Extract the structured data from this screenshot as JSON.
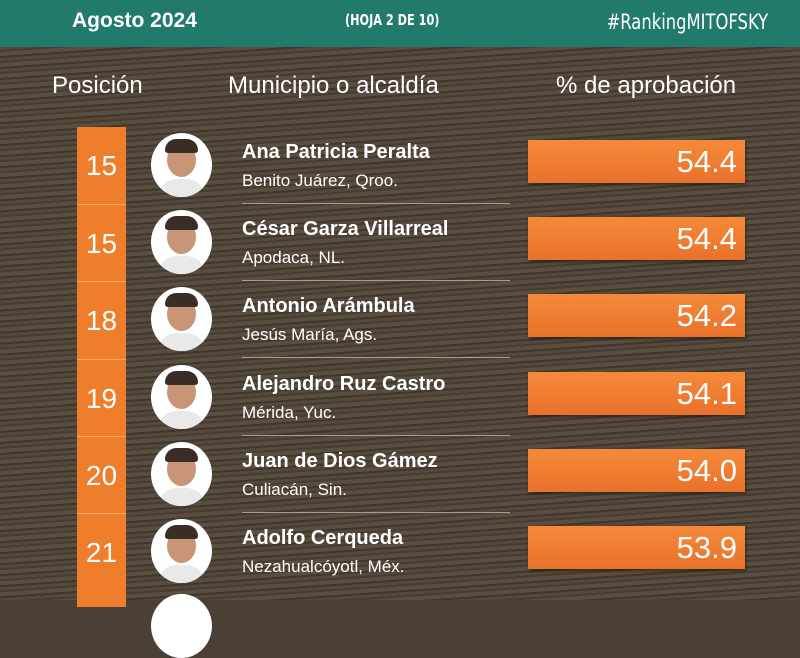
{
  "header": {
    "date": "Agosto  2024",
    "sheet": "(HOJA 2 DE 10)",
    "hashtag": "#RankingMITOFSKY",
    "color": "#217a6a"
  },
  "columns": {
    "position": "Posición",
    "municipality": "Municipio o alcaldía",
    "approval": "% de aprobación"
  },
  "accent": "#ef7e2c",
  "rows": [
    {
      "position": "15",
      "name": "Ana Patricia Peralta",
      "place": "Benito Juárez, Qroo.",
      "approval": "54.4"
    },
    {
      "position": "15",
      "name": "César Garza Villarreal",
      "place": "Apodaca, NL.",
      "approval": "54.4"
    },
    {
      "position": "18",
      "name": "Antonio Arámbula",
      "place": "Jesús María, Ags.",
      "approval": "54.2"
    },
    {
      "position": "19",
      "name": "Alejandro Ruz Castro",
      "place": "Mérida, Yuc.",
      "approval": "54.1"
    },
    {
      "position": "20",
      "name": "Juan de Dios Gámez",
      "place": "Culiacán, Sin.",
      "approval": "54.0"
    },
    {
      "position": "21",
      "name": "Adolfo Cerqueda",
      "place": "Nezahualcóyotl, Méx.",
      "approval": "53.9"
    }
  ]
}
